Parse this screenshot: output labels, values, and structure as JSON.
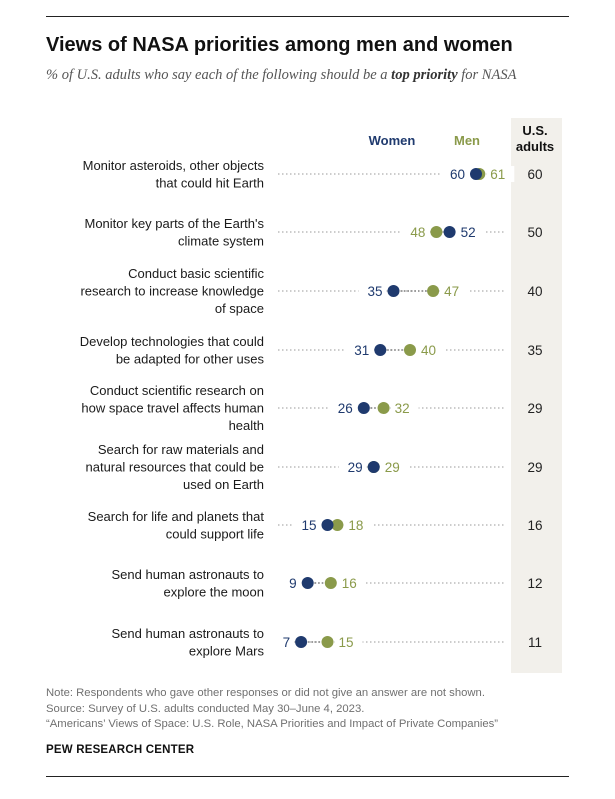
{
  "title": "Views of NASA priorities among men and women",
  "subtitle": {
    "before": "% of U.S. adults who say each of the following should be a ",
    "emphasis": "top priority",
    "after": " for NASA"
  },
  "colors": {
    "women": "#1f3a6e",
    "men": "#8a9a4a",
    "total_column": "#f2f0eb",
    "dots_line": "#9a9a9a",
    "text": "#1a1a1a"
  },
  "chart_data": {
    "type": "dot",
    "series": [
      {
        "name": "Women",
        "color": "#1f3a6e"
      },
      {
        "name": "Men",
        "color": "#8a9a4a"
      }
    ],
    "total_column_header": [
      "U.S.",
      "adults"
    ],
    "xlim": [
      0,
      100
    ],
    "rows": [
      {
        "label": [
          "Monitor asteroids, other objects",
          "that could hit Earth"
        ],
        "women": 60,
        "men": 61,
        "total": 60
      },
      {
        "label": [
          "Monitor key parts of the Earth's",
          "climate system"
        ],
        "women": 52,
        "men": 48,
        "total": 50
      },
      {
        "label": [
          "Conduct basic scientific",
          "research to increase knowledge",
          "of space"
        ],
        "women": 35,
        "men": 47,
        "total": 40
      },
      {
        "label": [
          "Develop technologies that could",
          "be adapted for other uses"
        ],
        "women": 31,
        "men": 40,
        "total": 35
      },
      {
        "label": [
          "Conduct scientific research on",
          "how space travel affects human",
          "health"
        ],
        "women": 26,
        "men": 32,
        "total": 29
      },
      {
        "label": [
          "Search for raw materials and",
          "natural resources that could be",
          "used on Earth"
        ],
        "women": 29,
        "men": 29,
        "total": 29
      },
      {
        "label": [
          "Search for life and planets that",
          "could support life"
        ],
        "women": 15,
        "men": 18,
        "total": 16
      },
      {
        "label": [
          "Send human astronauts to",
          "explore the moon"
        ],
        "women": 9,
        "men": 16,
        "total": 12
      },
      {
        "label": [
          "Send human astronauts to",
          "explore Mars"
        ],
        "women": 7,
        "men": 15,
        "total": 11
      }
    ]
  },
  "notes": [
    "Note: Respondents who gave other responses or did not give an answer are not shown.",
    "Source: Survey of U.S. adults conducted May 30–June 4, 2023.",
    "“Americans’ Views of Space: U.S. Role, NASA Priorities and Impact of Private Companies”"
  ],
  "brand": "PEW RESEARCH CENTER"
}
